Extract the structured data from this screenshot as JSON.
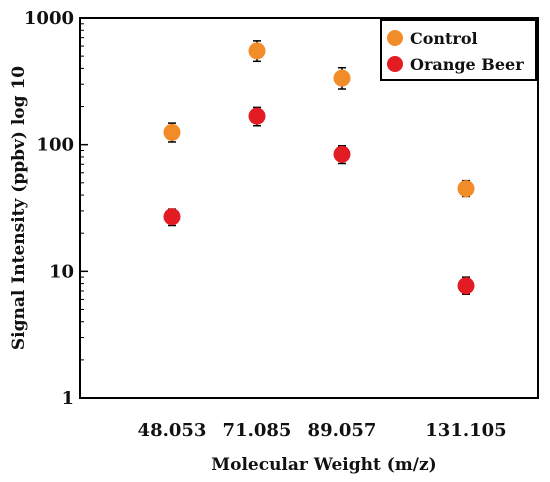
{
  "chart_data": {
    "type": "scatter",
    "title": "",
    "xlabel": "Molecular Weight (m/z)",
    "ylabel": "Signal Intensity (ppbv) log 10",
    "yscale": "log",
    "ylim": [
      1,
      1000
    ],
    "yticks": [
      "1",
      "10",
      "100",
      "1000"
    ],
    "categories": [
      "48.053",
      "71.085",
      "89.057",
      "131.105"
    ],
    "legend_position": "top-right",
    "grid": false,
    "series": [
      {
        "name": "Control",
        "color": "#f28c28",
        "values": [
          125,
          550,
          335,
          45
        ],
        "errors_low": [
          105,
          455,
          275,
          39
        ],
        "errors_high": [
          148,
          660,
          405,
          52
        ]
      },
      {
        "name": "Orange Beer",
        "color": "#e31b23",
        "values": [
          27,
          168,
          84,
          7.7
        ],
        "errors_low": [
          23,
          141,
          71,
          6.6
        ],
        "errors_high": [
          31,
          197,
          98,
          9.0
        ]
      }
    ]
  }
}
